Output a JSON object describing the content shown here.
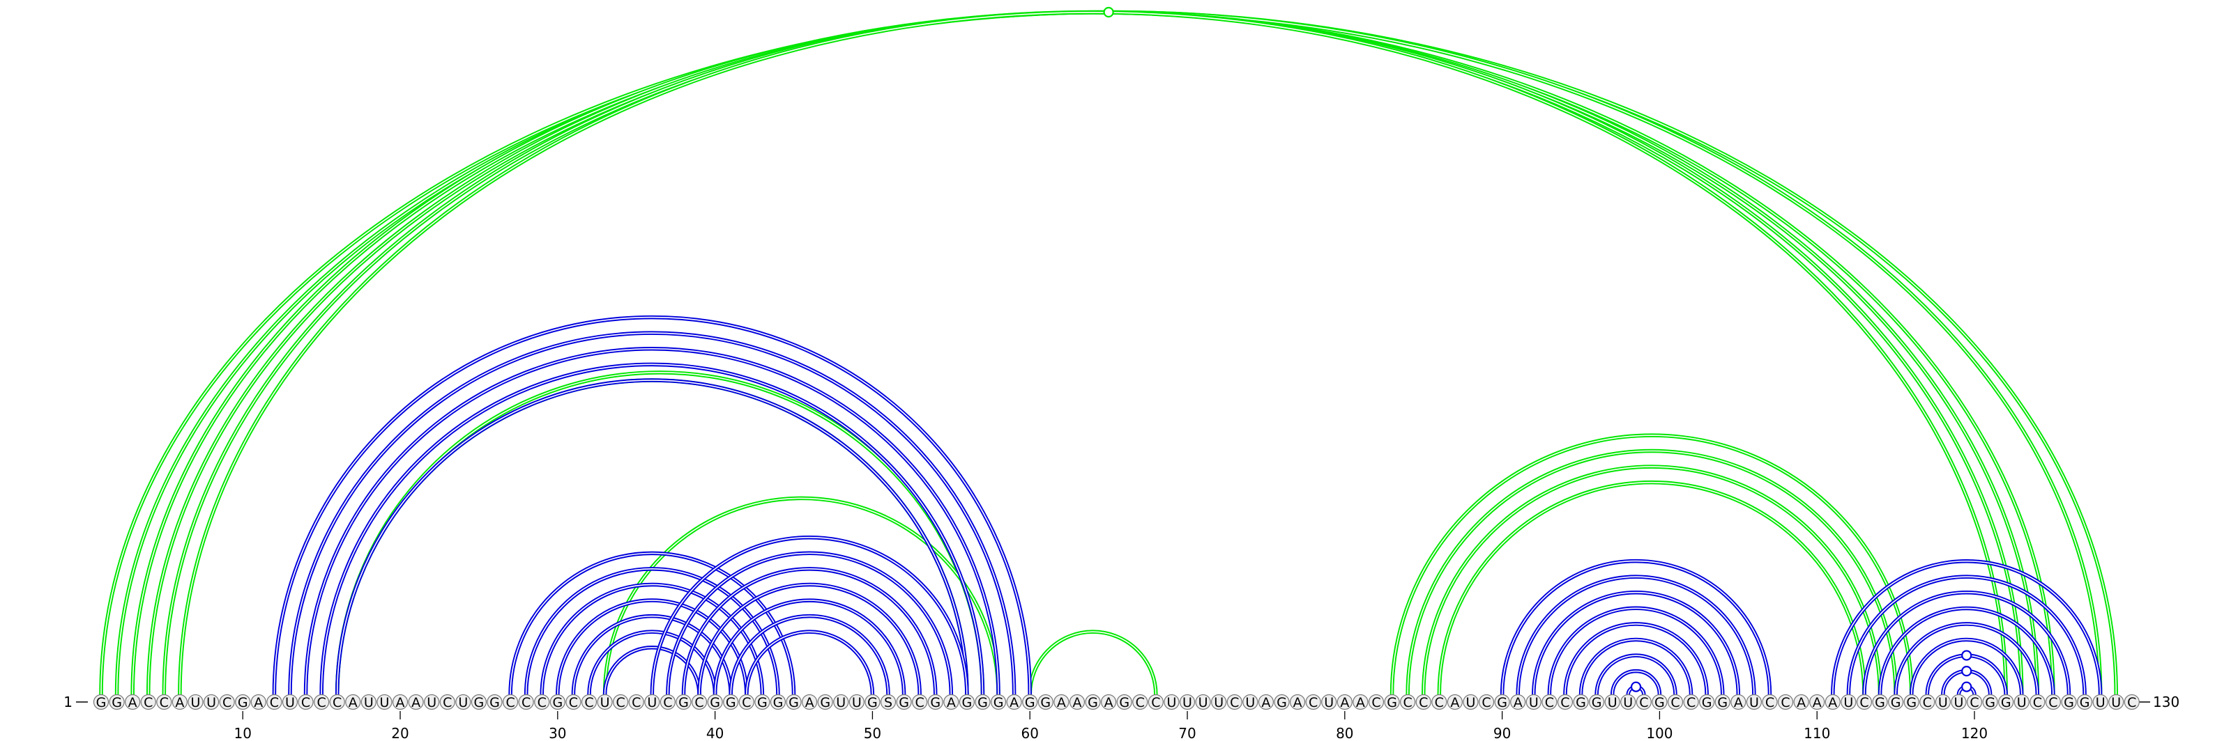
{
  "sequence": "GGACCAUUCGACUCCCAUUAAUCUGGCCCGCCUCCUCGCGGCGGGAGUUGSGCGAGGGAGGAAGAGCCUUUUCUAGACUAACGCCCAUCGAUCCGGUUCGCCGGAUCCAAAUCGGGCUUCGGUCCGGUUC",
  "start_label": "1",
  "end_label": "130",
  "ticks": [
    10,
    20,
    30,
    40,
    50,
    60,
    70,
    80,
    90,
    100,
    110,
    120
  ],
  "colors": {
    "set_a": "#00e600",
    "set_b": "#0000dd",
    "base_stroke": "#777777",
    "base_fill": "#eeeeee"
  },
  "arc_sets": [
    {
      "name": "green-structure",
      "color_key": "set_a",
      "pairs": [
        [
          1,
          129
        ],
        [
          2,
          128
        ],
        [
          3,
          125
        ],
        [
          4,
          124
        ],
        [
          5,
          123
        ],
        [
          6,
          122
        ],
        [
          16,
          56
        ],
        [
          16,
          57
        ],
        [
          33,
          58
        ],
        [
          60,
          68
        ],
        [
          83,
          116
        ],
        [
          84,
          115
        ],
        [
          85,
          114
        ],
        [
          86,
          113
        ]
      ]
    },
    {
      "name": "blue-structure",
      "color_key": "set_b",
      "pairs": [
        [
          12,
          60
        ],
        [
          13,
          59
        ],
        [
          14,
          58
        ],
        [
          15,
          57
        ],
        [
          16,
          56
        ],
        [
          27,
          45
        ],
        [
          28,
          44
        ],
        [
          29,
          43
        ],
        [
          30,
          42
        ],
        [
          31,
          41
        ],
        [
          32,
          40
        ],
        [
          33,
          39
        ],
        [
          36,
          56
        ],
        [
          37,
          55
        ],
        [
          38,
          54
        ],
        [
          39,
          53
        ],
        [
          40,
          52
        ],
        [
          41,
          51
        ],
        [
          42,
          50
        ],
        [
          90,
          107
        ],
        [
          91,
          106
        ],
        [
          92,
          105
        ],
        [
          93,
          104
        ],
        [
          94,
          103
        ],
        [
          95,
          102
        ],
        [
          96,
          101
        ],
        [
          97,
          100
        ],
        [
          98,
          99
        ],
        [
          111,
          128
        ],
        [
          112,
          127
        ],
        [
          113,
          126
        ],
        [
          114,
          125
        ],
        [
          115,
          124
        ],
        [
          116,
          123
        ],
        [
          117,
          122
        ],
        [
          118,
          121
        ],
        [
          119,
          120
        ]
      ]
    }
  ],
  "markers": [
    {
      "i": 1,
      "j": 129,
      "color_key": "set_a"
    },
    {
      "i": 98,
      "j": 99,
      "color_key": "set_b"
    },
    {
      "i": 117,
      "j": 122,
      "color_key": "set_b"
    },
    {
      "i": 118,
      "j": 121,
      "color_key": "set_b"
    },
    {
      "i": 119,
      "j": 120,
      "color_key": "set_b"
    }
  ]
}
